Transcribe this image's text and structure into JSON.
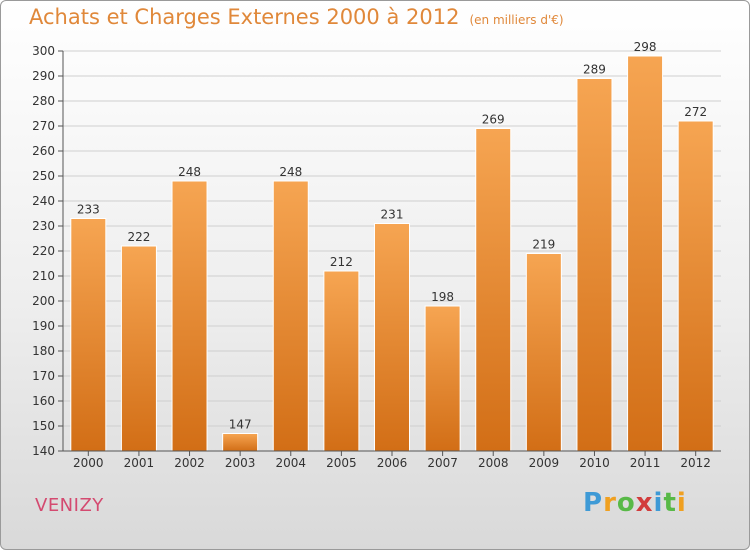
{
  "title": "Achats et Charges Externes 2000 à 2012",
  "subtitle": "(en milliers d'€)",
  "location": "VENIZY",
  "logo": {
    "letters": [
      "P",
      "r",
      "o",
      "x",
      "i",
      "t",
      "i"
    ],
    "colors": [
      "#3e9ad6",
      "#f0a020",
      "#58b947",
      "#d23c3c",
      "#3e9ad6",
      "#58b947",
      "#f0a020"
    ]
  },
  "chart_data": {
    "type": "bar",
    "categories": [
      "2000",
      "2001",
      "2002",
      "2003",
      "2004",
      "2005",
      "2006",
      "2007",
      "2008",
      "2009",
      "2010",
      "2011",
      "2012"
    ],
    "values": [
      233,
      222,
      248,
      147,
      248,
      212,
      231,
      198,
      269,
      219,
      289,
      298,
      272
    ],
    "title": "Achats et Charges Externes 2000 à 2012",
    "subtitle": "(en milliers d'€)",
    "ylim": [
      140,
      300
    ],
    "yticks": [
      140,
      150,
      160,
      170,
      180,
      190,
      200,
      210,
      220,
      230,
      240,
      250,
      260,
      270,
      280,
      290,
      300
    ],
    "grid": true,
    "bar_color": "#f0922d"
  }
}
